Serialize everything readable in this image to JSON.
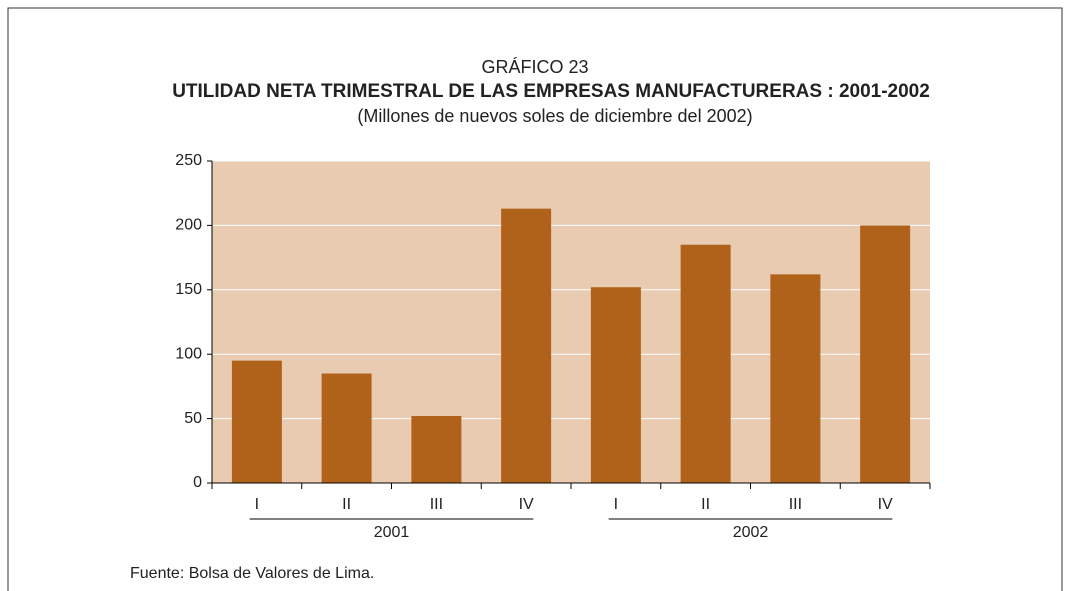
{
  "chart_data": {
    "type": "bar",
    "title": "UTILIDAD NETA TRIMESTRAL DE LAS EMPRESAS MANUFACTURERAS : 2001-2002",
    "label": "GRÁFICO 23",
    "subtitle": "(Millones de nuevos soles de diciembre del 2002)",
    "categories": [
      "I",
      "II",
      "III",
      "IV",
      "I",
      "II",
      "III",
      "IV"
    ],
    "category_groups": [
      {
        "label": "2001",
        "size": 4
      },
      {
        "label": "2002",
        "size": 4
      }
    ],
    "values": [
      95,
      85,
      52,
      213,
      152,
      185,
      162,
      200
    ],
    "color": "#b0621a",
    "plot_background": "#e8cbb0",
    "ylim": [
      0,
      250
    ],
    "yticks": [
      0,
      50,
      100,
      150,
      200,
      250
    ],
    "grid": true,
    "source": "Fuente: Bolsa de Valores de Lima."
  }
}
